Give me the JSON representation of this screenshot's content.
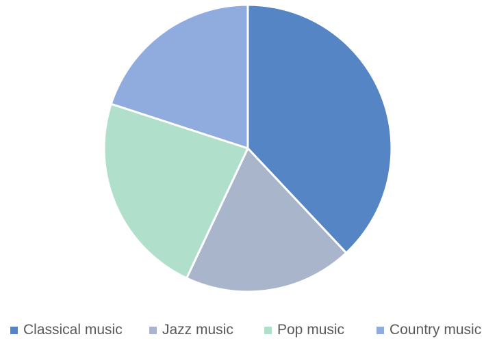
{
  "chart_data": {
    "type": "pie",
    "categories": [
      "Classical music",
      "Jazz music",
      "Pop music",
      "Country music"
    ],
    "values": [
      38,
      19,
      23,
      20
    ],
    "colors": [
      "#5585c5",
      "#a9b5cb",
      "#b0dfcb",
      "#90abde"
    ],
    "start_angle_deg": 0,
    "direction": "clockwise",
    "legend_position": "bottom",
    "slice_border_color": "#ffffff"
  }
}
